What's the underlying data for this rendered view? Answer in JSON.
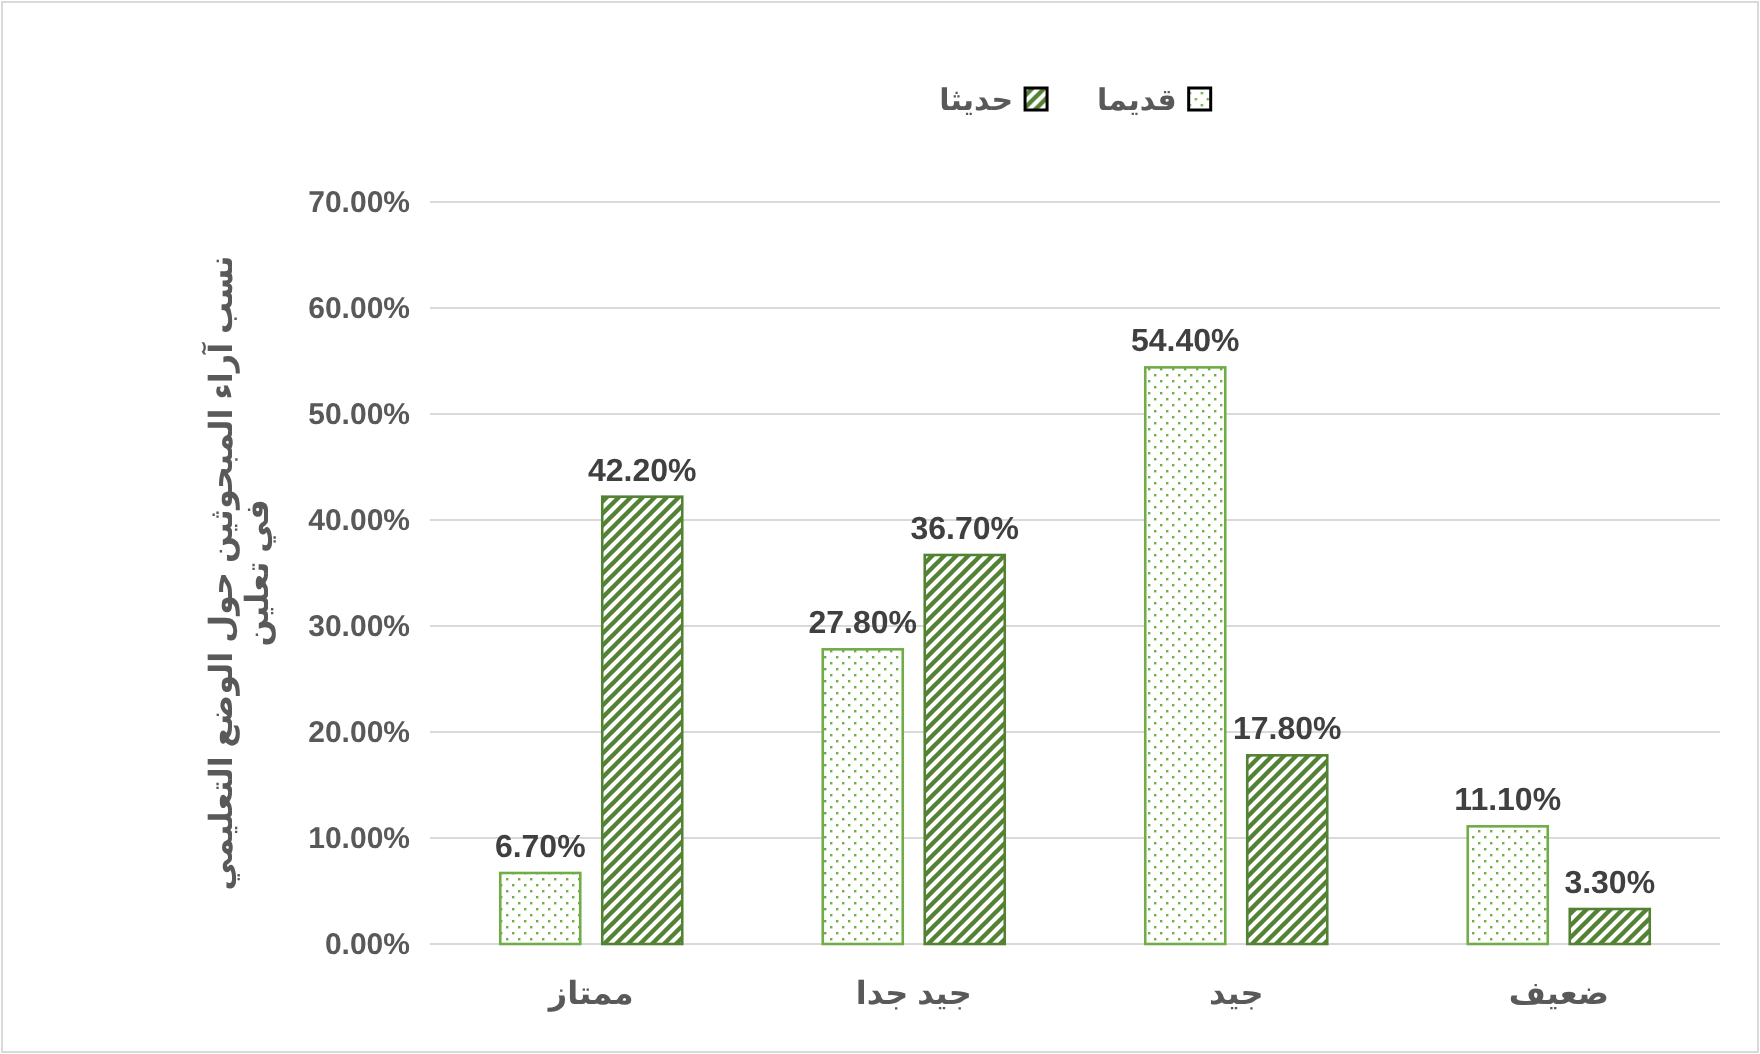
{
  "chart_data": {
    "type": "bar",
    "ylabel": "نسب آراء المبحوثين حول الوضع التعليمي في تعلين",
    "categories": [
      "ممتاز",
      "جيد جدا",
      "جيد",
      "ضعيف"
    ],
    "series": [
      {
        "name": "قديما",
        "color": "#70ad47",
        "values": [
          6.7,
          27.8,
          54.4,
          11.1
        ]
      },
      {
        "name": "حديثا",
        "color": "#548235",
        "values": [
          42.2,
          36.7,
          17.8,
          3.3
        ]
      }
    ],
    "ylim": [
      0,
      70
    ],
    "yticks": [
      {
        "value": 0,
        "label": "0.00%"
      },
      {
        "value": 10,
        "label": "10.00%"
      },
      {
        "value": 20,
        "label": "20.00%"
      },
      {
        "value": 30,
        "label": "30.00%"
      },
      {
        "value": 40,
        "label": "40.00%"
      },
      {
        "value": 50,
        "label": "50.00%"
      },
      {
        "value": 60,
        "label": "60.00%"
      },
      {
        "value": 70,
        "label": "70.00%"
      }
    ],
    "value_labels": [
      [
        "6.70%",
        "27.80%",
        "54.40%",
        "11.10%"
      ],
      [
        "42.20%",
        "36.70%",
        "17.80%",
        "3.30%"
      ]
    ],
    "grid": "y",
    "legend": "top"
  }
}
